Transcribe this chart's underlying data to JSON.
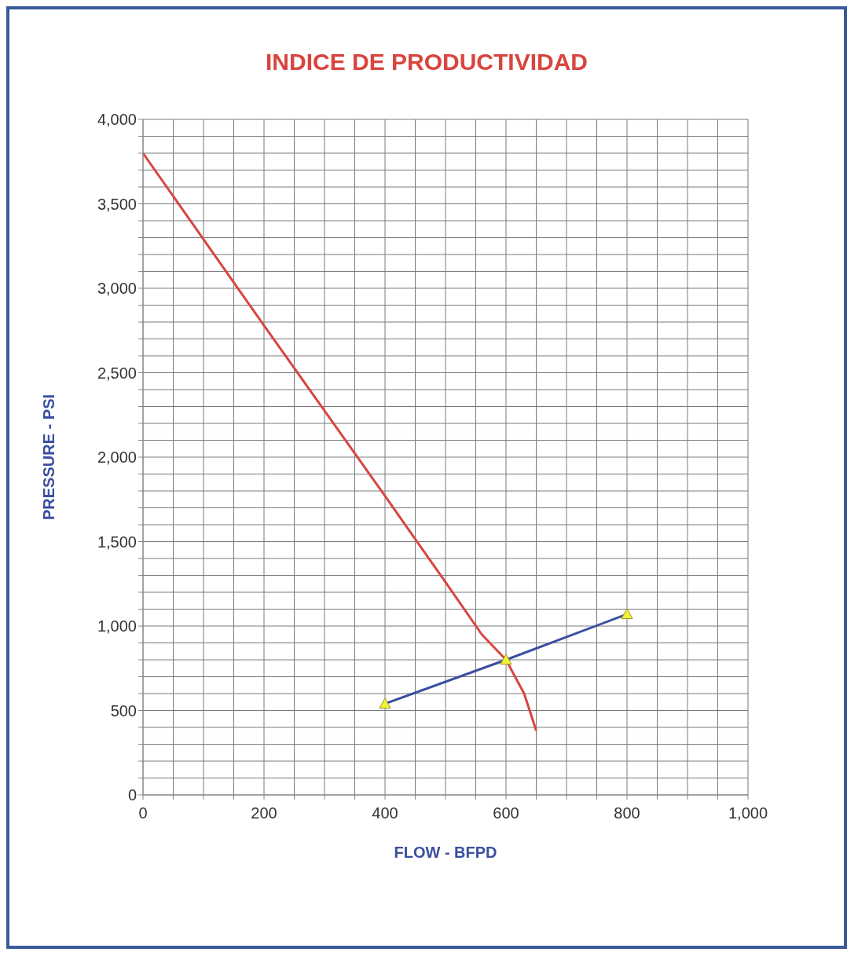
{
  "chart_data": {
    "type": "line",
    "title": "INDICE DE PRODUCTIVIDAD",
    "xlabel": "FLOW  - BFPD",
    "ylabel": "PRESSURE  - PSI",
    "xlim": [
      0,
      1000
    ],
    "ylim": [
      0,
      4000
    ],
    "xticks": [
      0,
      {
        "value": 50,
        "label": null
      },
      {
        "value": 100,
        "label": null
      },
      {
        "value": 150,
        "label": null
      },
      200,
      {
        "value": 250,
        "label": null
      },
      {
        "value": 300,
        "label": null
      },
      {
        "value": 350,
        "label": null
      },
      400,
      {
        "value": 450,
        "label": null
      },
      {
        "value": 500,
        "label": null
      },
      {
        "value": 550,
        "label": null
      },
      600,
      {
        "value": 650,
        "label": null
      },
      {
        "value": 700,
        "label": null
      },
      {
        "value": 750,
        "label": null
      },
      800,
      {
        "value": 850,
        "label": null
      },
      {
        "value": 900,
        "label": null
      },
      {
        "value": 950,
        "label": null
      },
      {
        "value": 1000,
        "label": "1,000"
      }
    ],
    "yticks": [
      0,
      {
        "value": 100,
        "label": null
      },
      {
        "value": 200,
        "label": null
      },
      {
        "value": 300,
        "label": null
      },
      {
        "value": 400,
        "label": null
      },
      500,
      {
        "value": 600,
        "label": null
      },
      {
        "value": 700,
        "label": null
      },
      {
        "value": 800,
        "label": null
      },
      {
        "value": 900,
        "label": null
      },
      {
        "value": 1000,
        "label": "1,000"
      },
      {
        "value": 1100,
        "label": null
      },
      {
        "value": 1200,
        "label": null
      },
      {
        "value": 1300,
        "label": null
      },
      {
        "value": 1400,
        "label": null
      },
      {
        "value": 1500,
        "label": "1,500"
      },
      {
        "value": 1600,
        "label": null
      },
      {
        "value": 1700,
        "label": null
      },
      {
        "value": 1800,
        "label": null
      },
      {
        "value": 1900,
        "label": null
      },
      {
        "value": 2000,
        "label": "2,000"
      },
      {
        "value": 2100,
        "label": null
      },
      {
        "value": 2200,
        "label": null
      },
      {
        "value": 2300,
        "label": null
      },
      {
        "value": 2400,
        "label": null
      },
      {
        "value": 2500,
        "label": "2,500"
      },
      {
        "value": 2600,
        "label": null
      },
      {
        "value": 2700,
        "label": null
      },
      {
        "value": 2800,
        "label": null
      },
      {
        "value": 2900,
        "label": null
      },
      {
        "value": 3000,
        "label": "3,000"
      },
      {
        "value": 3100,
        "label": null
      },
      {
        "value": 3200,
        "label": null
      },
      {
        "value": 3300,
        "label": null
      },
      {
        "value": 3400,
        "label": null
      },
      {
        "value": 3500,
        "label": "3,500"
      },
      {
        "value": 3600,
        "label": null
      },
      {
        "value": 3700,
        "label": null
      },
      {
        "value": 3800,
        "label": null
      },
      {
        "value": 3900,
        "label": null
      },
      {
        "value": 4000,
        "label": "4,000"
      }
    ],
    "grid": true,
    "series": [
      {
        "color": "#d9453f",
        "marker": "none",
        "x": [
          0,
          200,
          400,
          500,
          560,
          600,
          630,
          650
        ],
        "values": [
          3800,
          2780,
          1770,
          1260,
          950,
          800,
          600,
          380
        ]
      },
      {
        "color": "#3a4fa0",
        "marker": "triangle",
        "x": [
          400,
          600,
          800
        ],
        "values": [
          540,
          800,
          1070
        ]
      }
    ]
  }
}
